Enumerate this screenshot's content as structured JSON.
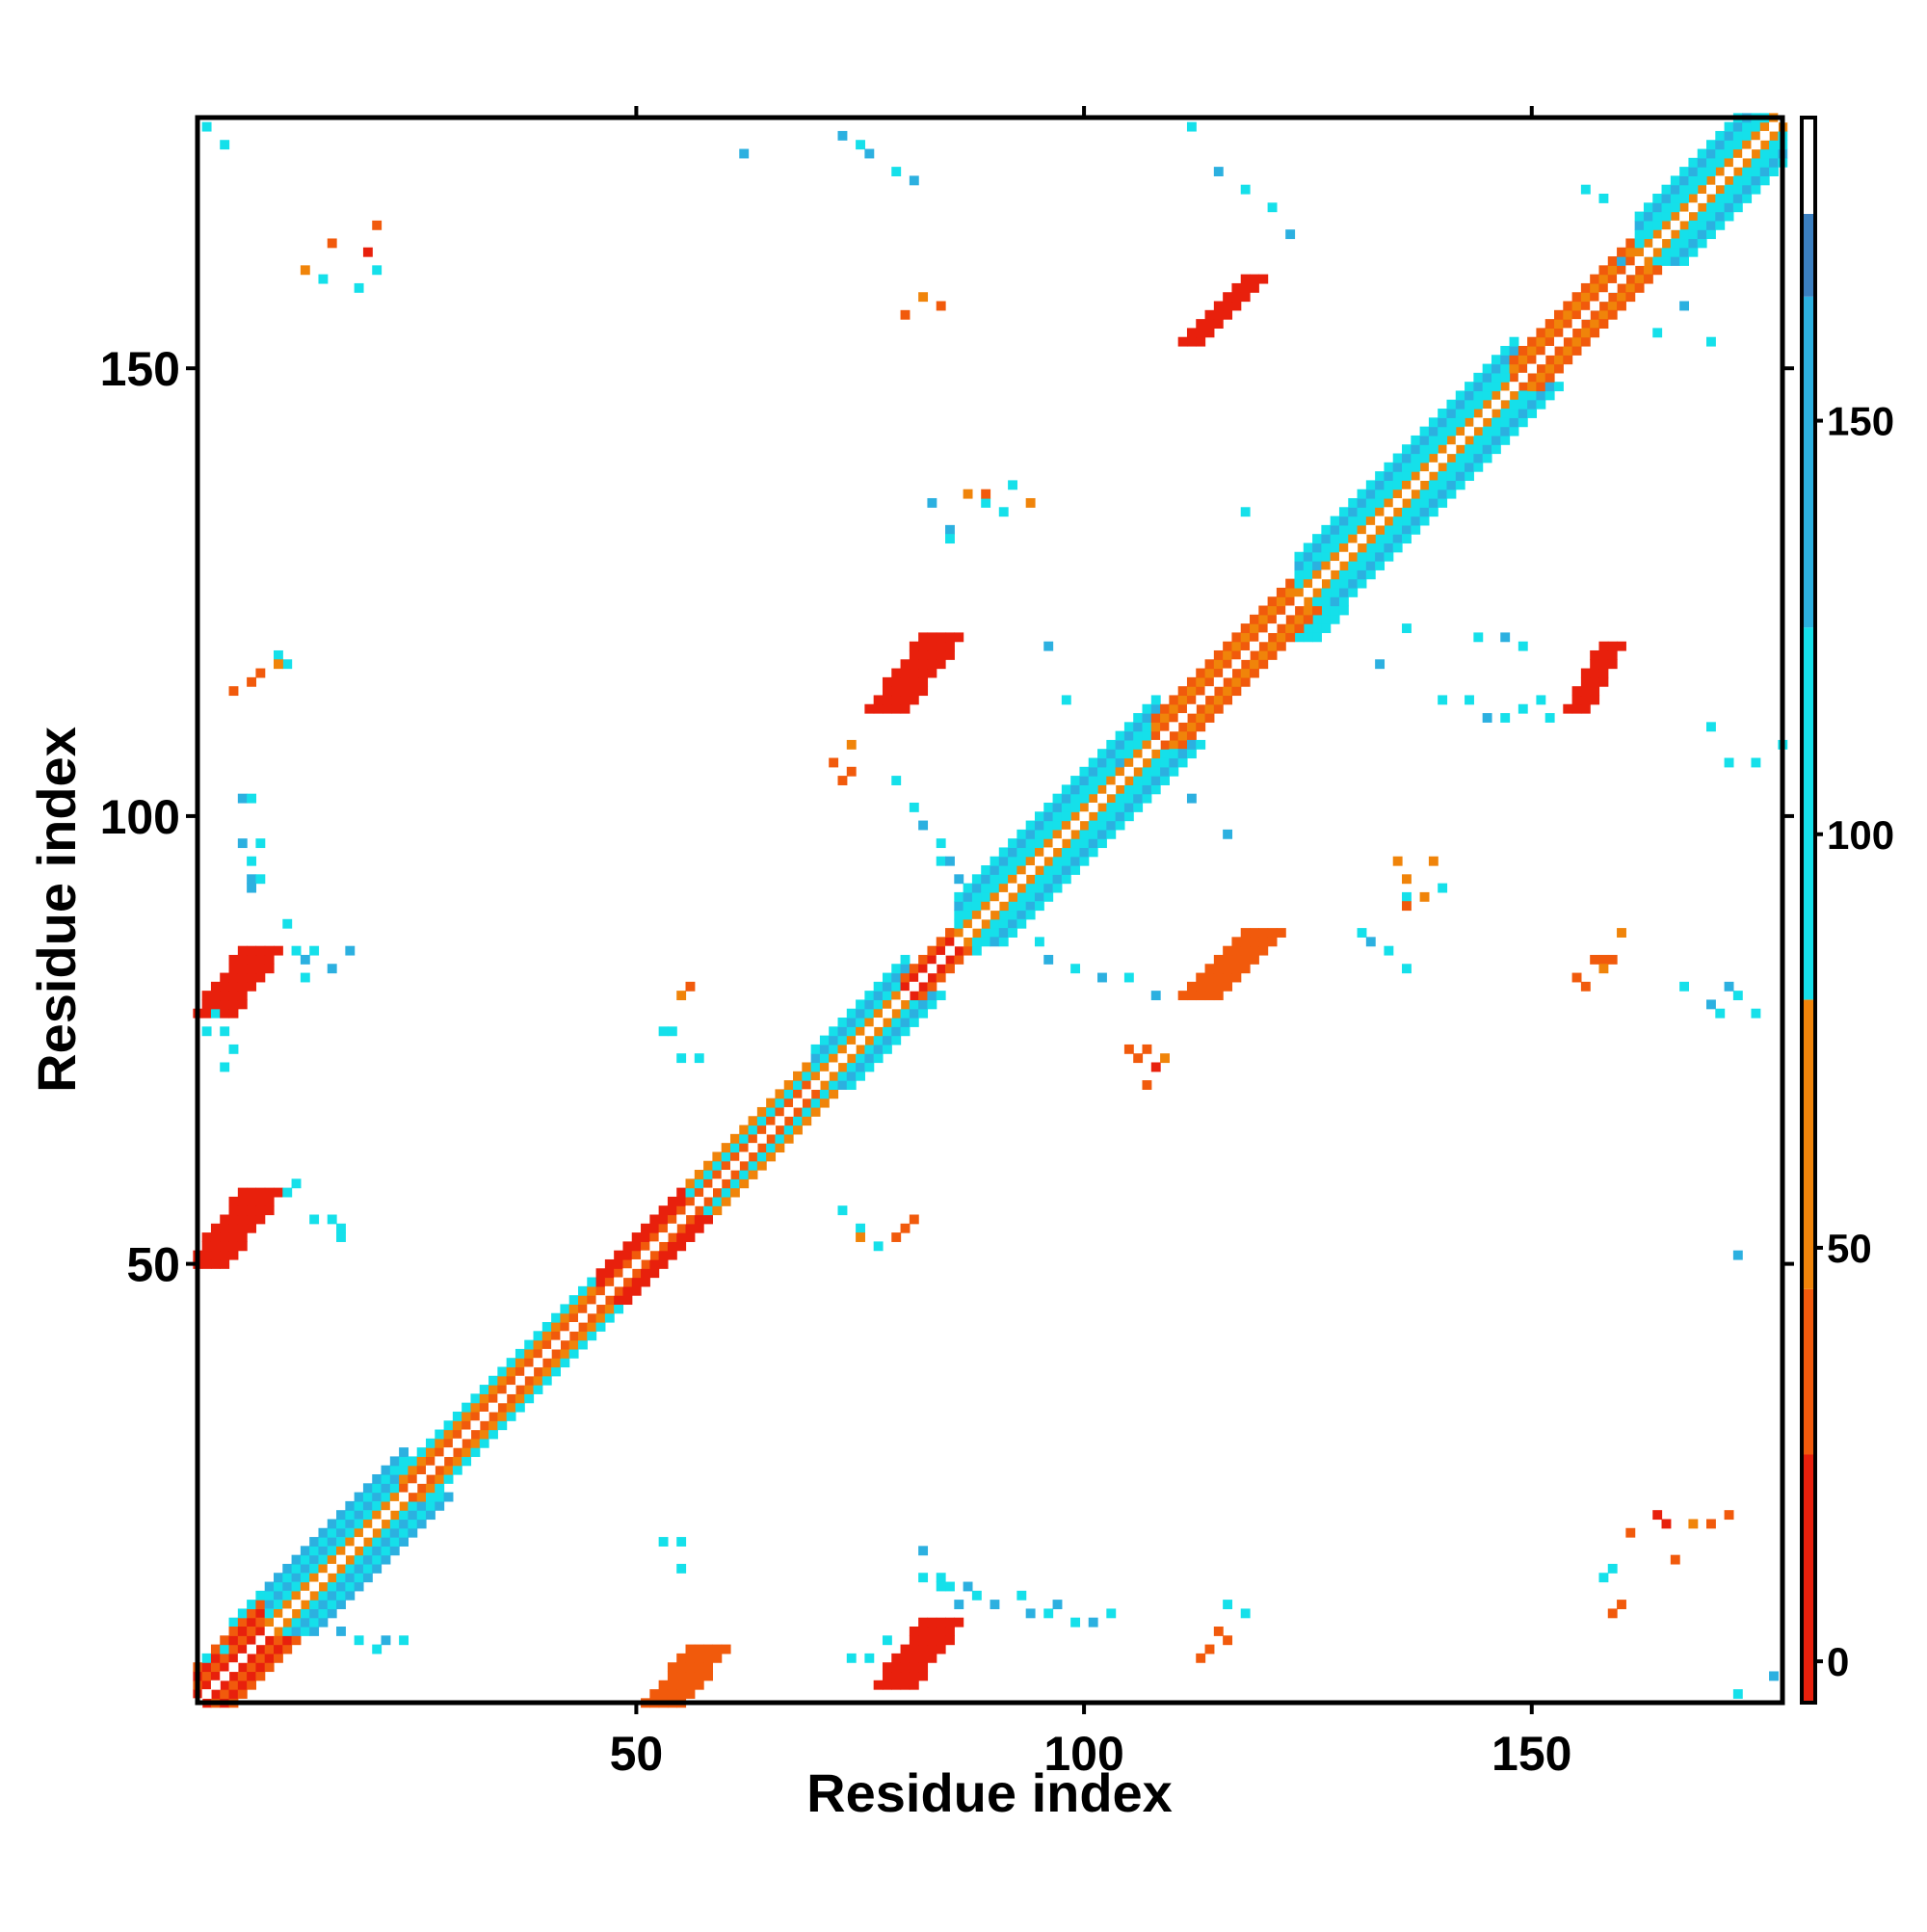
{
  "chart_data": {
    "type": "heatmap",
    "title": "",
    "xlabel": "Residue index",
    "ylabel": "Residue index",
    "xlim": [
      1,
      178
    ],
    "ylim": [
      1,
      178
    ],
    "x_ticks": [
      50,
      100,
      150
    ],
    "y_ticks": [
      50,
      100,
      150
    ],
    "colorbar": {
      "range": [
        -5,
        175
      ],
      "ticks": [
        0,
        50,
        100,
        150
      ],
      "bands": [
        {
          "from": -5,
          "to": 25,
          "color": "#e8200c"
        },
        {
          "from": 25,
          "to": 45,
          "color": "#f15a0c"
        },
        {
          "from": 45,
          "to": 80,
          "color": "#f0840a"
        },
        {
          "from": 80,
          "to": 125,
          "color": "#15e0ea"
        },
        {
          "from": 125,
          "to": 165,
          "color": "#2cb0e0"
        },
        {
          "from": 165,
          "to": 175,
          "color": "#3b7fc0"
        }
      ],
      "above_max_color": "#ffffff"
    },
    "cell_colors": {
      "r": "#e8200c",
      "o": "#f15a0c",
      "y": "#f0840a",
      "c": "#15e0ea",
      "s": "#2cb0e0",
      "b": "#3b7fc0"
    },
    "diagonal": {
      "start": 1,
      "end": 178,
      "segments": [
        {
          "start": 1,
          "end": 9,
          "pattern": [
            "r",
            "r",
            "o",
            "r",
            "o"
          ]
        },
        {
          "start": 9,
          "end": 24,
          "pattern": [
            "o",
            "y",
            "c",
            "s",
            "c",
            "s"
          ]
        },
        {
          "start": 24,
          "end": 46,
          "pattern": [
            "o",
            "o",
            "y",
            "c"
          ]
        },
        {
          "start": 46,
          "end": 56,
          "pattern": [
            "r",
            "o",
            "r",
            "r"
          ]
        },
        {
          "start": 56,
          "end": 70,
          "pattern": [
            "y",
            "o",
            "c",
            "y"
          ]
        },
        {
          "start": 70,
          "end": 80,
          "pattern": [
            "o",
            "y",
            "c",
            "s",
            "c"
          ]
        },
        {
          "start": 80,
          "end": 86,
          "pattern": [
            "r",
            "r",
            "o"
          ]
        },
        {
          "start": 86,
          "end": 108,
          "pattern": [
            "o",
            "y",
            "c",
            "c",
            "s",
            "c"
          ]
        },
        {
          "start": 108,
          "end": 124,
          "pattern": [
            "r",
            "o",
            "y",
            "o"
          ]
        },
        {
          "start": 124,
          "end": 148,
          "pattern": [
            "o",
            "y",
            "c",
            "c",
            "s",
            "c"
          ]
        },
        {
          "start": 148,
          "end": 162,
          "pattern": [
            "r",
            "o",
            "y",
            "o"
          ]
        },
        {
          "start": 162,
          "end": 178,
          "pattern": [
            "o",
            "y",
            "c",
            "c",
            "s",
            "c"
          ]
        }
      ]
    },
    "patches": [
      {
        "x0": 53,
        "y0": 1,
        "x1": 58,
        "y1": 7,
        "width": 4,
        "color": "o"
      },
      {
        "x0": 79,
        "y0": 3,
        "x1": 84,
        "y1": 10,
        "width": 4,
        "color": "r"
      },
      {
        "x0": 2,
        "y0": 50,
        "x1": 8,
        "y1": 58,
        "width": 4,
        "color": "r"
      },
      {
        "x0": 3,
        "y0": 78,
        "x1": 8,
        "y1": 85,
        "width": 4,
        "color": "r"
      },
      {
        "x0": 113,
        "y0": 80,
        "x1": 120,
        "y1": 87,
        "width": 4,
        "color": "o"
      },
      {
        "x0": 78,
        "y0": 112,
        "x1": 84,
        "y1": 120,
        "width": 4,
        "color": "r"
      },
      {
        "x0": 155,
        "y0": 112,
        "x1": 159,
        "y1": 119,
        "width": 3,
        "color": "r"
      },
      {
        "x0": 112,
        "y0": 153,
        "x1": 119,
        "y1": 160,
        "width": 3,
        "color": "r"
      },
      {
        "x0": 85,
        "y0": 84,
        "x1": 96,
        "y1": 92,
        "width": 3,
        "color": "c"
      },
      {
        "x0": 100,
        "y0": 100,
        "x1": 112,
        "y1": 110,
        "width": 3,
        "color": "c"
      },
      {
        "x0": 125,
        "y0": 120,
        "x1": 135,
        "y1": 132,
        "width": 3,
        "color": "c"
      },
      {
        "x0": 156,
        "y0": 155,
        "x1": 172,
        "y1": 172,
        "width": 3,
        "color": "s"
      },
      {
        "x0": 6,
        "y0": 10,
        "x1": 20,
        "y1": 24,
        "width": 3,
        "color": "c"
      },
      {
        "x0": 138,
        "y0": 138,
        "x1": 150,
        "y1": 150,
        "width": 3,
        "color": "c"
      }
    ],
    "points": [
      [
        "c",
        2,
        177
      ],
      [
        "c",
        4,
        175
      ],
      [
        "s",
        73,
        176
      ],
      [
        "c",
        75,
        175
      ],
      [
        "s",
        76,
        174
      ],
      [
        "c",
        79,
        172
      ],
      [
        "s",
        81,
        171
      ],
      [
        "c",
        112,
        177
      ],
      [
        "s",
        115,
        172
      ],
      [
        "c",
        118,
        170
      ],
      [
        "c",
        121,
        168
      ],
      [
        "s",
        123,
        165
      ],
      [
        "y",
        13,
        161
      ],
      [
        "o",
        16,
        164
      ],
      [
        "r",
        20,
        163
      ],
      [
        "o",
        21,
        166
      ],
      [
        "c",
        15,
        160
      ],
      [
        "c",
        19,
        159
      ],
      [
        "c",
        21,
        161
      ],
      [
        "o",
        80,
        156
      ],
      [
        "y",
        82,
        158
      ],
      [
        "o",
        84,
        157
      ],
      [
        "c",
        156,
        170
      ],
      [
        "c",
        158,
        169
      ],
      [
        "s",
        160,
        162
      ],
      [
        "c",
        164,
        154
      ],
      [
        "s",
        167,
        157
      ],
      [
        "c",
        170,
        153
      ],
      [
        "s",
        62,
        174
      ],
      [
        "c",
        118,
        134
      ],
      [
        "s",
        83,
        135
      ],
      [
        "y",
        87,
        136
      ],
      [
        "c",
        89,
        135
      ],
      [
        "o",
        89,
        136
      ],
      [
        "c",
        91,
        134
      ],
      [
        "c",
        92,
        137
      ],
      [
        "y",
        94,
        135
      ],
      [
        "s",
        85,
        132
      ],
      [
        "c",
        85,
        131
      ],
      [
        "c",
        131,
        126
      ],
      [
        "s",
        126,
        128
      ],
      [
        "c",
        10,
        118
      ],
      [
        "c",
        11,
        117
      ],
      [
        "o",
        5,
        114
      ],
      [
        "o",
        8,
        116
      ],
      [
        "o",
        7,
        115
      ],
      [
        "y",
        10,
        117
      ],
      [
        "o",
        72,
        106
      ],
      [
        "o",
        74,
        105
      ],
      [
        "y",
        74,
        108
      ],
      [
        "o",
        73,
        104
      ],
      [
        "c",
        79,
        104
      ],
      [
        "c",
        81,
        101
      ],
      [
        "s",
        82,
        99
      ],
      [
        "c",
        84,
        97
      ],
      [
        "c",
        84,
        95
      ],
      [
        "s",
        85,
        95
      ],
      [
        "s",
        86,
        93
      ],
      [
        "s",
        96,
        119
      ],
      [
        "c",
        98,
        113
      ],
      [
        "s",
        104,
        106
      ],
      [
        "c",
        109,
        106
      ],
      [
        "c",
        110,
        105
      ],
      [
        "s",
        112,
        102
      ],
      [
        "s",
        116,
        98
      ],
      [
        "c",
        136,
        121
      ],
      [
        "s",
        133,
        117
      ],
      [
        "c",
        140,
        113
      ],
      [
        "c",
        143,
        113
      ],
      [
        "s",
        145,
        111
      ],
      [
        "c",
        147,
        111
      ],
      [
        "c",
        149,
        112
      ],
      [
        "c",
        151,
        113
      ],
      [
        "c",
        152,
        111
      ],
      [
        "c",
        172,
        106
      ],
      [
        "c",
        175,
        106
      ],
      [
        "c",
        149,
        119
      ],
      [
        "s",
        147,
        120
      ],
      [
        "c",
        144,
        120
      ],
      [
        "c",
        170,
        110
      ],
      [
        "c",
        178,
        108
      ],
      [
        "s",
        6,
        102
      ],
      [
        "c",
        7,
        102
      ],
      [
        "s",
        6,
        97
      ],
      [
        "c",
        8,
        97
      ],
      [
        "c",
        7,
        95
      ],
      [
        "s",
        7,
        93
      ],
      [
        "c",
        8,
        93
      ],
      [
        "s",
        7,
        92
      ],
      [
        "c",
        11,
        88
      ],
      [
        "c",
        12,
        85
      ],
      [
        "s",
        13,
        84
      ],
      [
        "c",
        13,
        82
      ],
      [
        "s",
        16,
        83
      ],
      [
        "c",
        14,
        85
      ],
      [
        "s",
        18,
        85
      ],
      [
        "c",
        2,
        76
      ],
      [
        "c",
        4,
        76
      ],
      [
        "c",
        3,
        78
      ],
      [
        "c",
        5,
        74
      ],
      [
        "c",
        4,
        72
      ],
      [
        "c",
        92,
        87
      ],
      [
        "c",
        95,
        86
      ],
      [
        "s",
        96,
        84
      ],
      [
        "c",
        99,
        83
      ],
      [
        "s",
        102,
        82
      ],
      [
        "c",
        105,
        82
      ],
      [
        "s",
        108,
        80
      ],
      [
        "o",
        105,
        74
      ],
      [
        "o",
        107,
        74
      ],
      [
        "r",
        108,
        72
      ],
      [
        "y",
        109,
        73
      ],
      [
        "o",
        107,
        70
      ],
      [
        "o",
        106,
        73
      ],
      [
        "c",
        131,
        87
      ],
      [
        "s",
        132,
        86
      ],
      [
        "c",
        134,
        85
      ],
      [
        "c",
        136,
        83
      ],
      [
        "y",
        136,
        93
      ],
      [
        "y",
        138,
        91
      ],
      [
        "c",
        136,
        91
      ],
      [
        "y",
        139,
        95
      ],
      [
        "y",
        135,
        95
      ],
      [
        "c",
        140,
        92
      ],
      [
        "o",
        136,
        90
      ],
      [
        "y",
        160,
        87
      ],
      [
        "o",
        158,
        84
      ],
      [
        "y",
        158,
        83
      ],
      [
        "o",
        155,
        82
      ],
      [
        "o",
        156,
        81
      ],
      [
        "o",
        157,
        84
      ],
      [
        "o",
        159,
        84
      ],
      [
        "c",
        167,
        81
      ],
      [
        "s",
        170,
        79
      ],
      [
        "c",
        173,
        80
      ],
      [
        "c",
        175,
        78
      ],
      [
        "c",
        171,
        78
      ],
      [
        "s",
        172,
        81
      ],
      [
        "c",
        53,
        76
      ],
      [
        "c",
        54,
        76
      ],
      [
        "y",
        55,
        80
      ],
      [
        "o",
        56,
        81
      ],
      [
        "c",
        55,
        73
      ],
      [
        "c",
        57,
        73
      ],
      [
        "c",
        73,
        56
      ],
      [
        "c",
        75,
        54
      ],
      [
        "y",
        75,
        53
      ],
      [
        "c",
        77,
        52
      ],
      [
        "o",
        79,
        53
      ],
      [
        "o",
        80,
        54
      ],
      [
        "o",
        81,
        55
      ],
      [
        "c",
        14,
        55
      ],
      [
        "c",
        16,
        55
      ],
      [
        "c",
        17,
        54
      ],
      [
        "c",
        17,
        53
      ],
      [
        "c",
        12,
        59
      ],
      [
        "c",
        11,
        58
      ],
      [
        "s",
        173,
        51
      ],
      [
        "c",
        53,
        19
      ],
      [
        "c",
        55,
        19
      ],
      [
        "c",
        55,
        16
      ],
      [
        "s",
        82,
        18
      ],
      [
        "c",
        82,
        15
      ],
      [
        "c",
        84,
        15
      ],
      [
        "c",
        85,
        14
      ],
      [
        "s",
        87,
        14
      ],
      [
        "c",
        88,
        13
      ],
      [
        "s",
        90,
        12
      ],
      [
        "c",
        93,
        13
      ],
      [
        "s",
        94,
        11
      ],
      [
        "c",
        96,
        11
      ],
      [
        "s",
        97,
        12
      ],
      [
        "c",
        99,
        10
      ],
      [
        "s",
        101,
        10
      ],
      [
        "c",
        103,
        11
      ],
      [
        "c",
        78,
        8
      ],
      [
        "c",
        76,
        6
      ],
      [
        "c",
        74,
        6
      ],
      [
        "c",
        84,
        14
      ],
      [
        "s",
        86,
        12
      ],
      [
        "s",
        17,
        9
      ],
      [
        "c",
        19,
        8
      ],
      [
        "c",
        21,
        7
      ],
      [
        "s",
        22,
        8
      ],
      [
        "c",
        24,
        8
      ],
      [
        "c",
        2,
        6
      ],
      [
        "c",
        4,
        7
      ],
      [
        "c",
        116,
        12
      ],
      [
        "c",
        118,
        11
      ],
      [
        "o",
        114,
        7
      ],
      [
        "o",
        116,
        8
      ],
      [
        "o",
        115,
        9
      ],
      [
        "o",
        113,
        6
      ],
      [
        "o",
        160,
        12
      ],
      [
        "o",
        159,
        11
      ],
      [
        "c",
        158,
        15
      ],
      [
        "c",
        159,
        16
      ],
      [
        "o",
        161,
        20
      ],
      [
        "r",
        164,
        22
      ],
      [
        "r",
        165,
        21
      ],
      [
        "o",
        166,
        17
      ],
      [
        "y",
        168,
        21
      ],
      [
        "o",
        170,
        21
      ],
      [
        "o",
        172,
        22
      ],
      [
        "s",
        177,
        4
      ],
      [
        "c",
        173,
        2
      ]
    ]
  }
}
